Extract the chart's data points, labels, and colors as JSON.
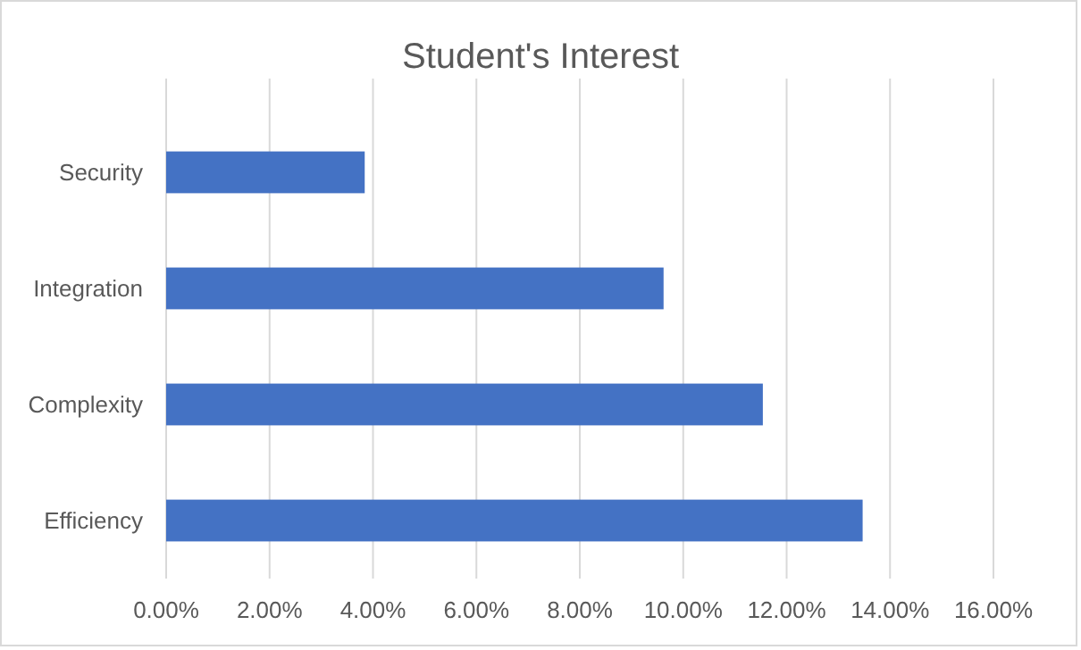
{
  "chart_data": {
    "type": "bar",
    "orientation": "horizontal",
    "title": "Student's Interest",
    "categories": [
      "Security",
      "Integration",
      "Complexity",
      "Efficiency"
    ],
    "values": [
      3.84,
      9.62,
      11.54,
      13.47
    ],
    "color": "#4472c4",
    "xlim": [
      0,
      16
    ],
    "xticks": [
      {
        "value": 0,
        "label": "0.00%"
      },
      {
        "value": 2,
        "label": "2.00%"
      },
      {
        "value": 4,
        "label": "4.00%"
      },
      {
        "value": 6,
        "label": "6.00%"
      },
      {
        "value": 8,
        "label": "8.00%"
      },
      {
        "value": 10,
        "label": "10.00%"
      },
      {
        "value": 12,
        "label": "12.00%"
      },
      {
        "value": 14,
        "label": "14.00%"
      },
      {
        "value": 16,
        "label": "16.00%"
      }
    ],
    "grid": "x"
  }
}
